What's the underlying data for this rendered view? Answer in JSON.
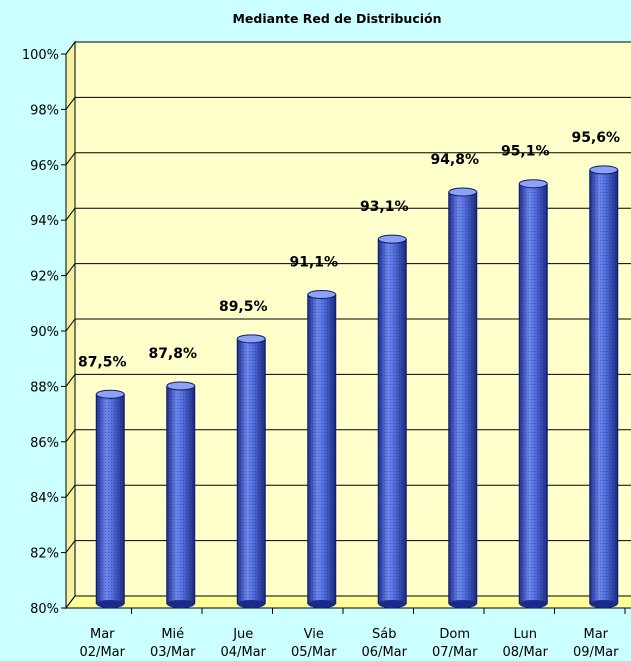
{
  "chart_data": {
    "type": "bar",
    "title": "Mediante Red de Distribución",
    "categories": [
      [
        "Mar",
        "02/Mar"
      ],
      [
        "Mié",
        "03/Mar"
      ],
      [
        "Jue",
        "04/Mar"
      ],
      [
        "Vie",
        "05/Mar"
      ],
      [
        "Sáb",
        "06/Mar"
      ],
      [
        "Dom",
        "07/Mar"
      ],
      [
        "Lun",
        "08/Mar"
      ],
      [
        "Mar",
        "09/Mar"
      ]
    ],
    "values": [
      87.5,
      87.8,
      89.5,
      91.1,
      93.1,
      94.8,
      95.1,
      95.6
    ],
    "data_labels": [
      "87,5%",
      "87,8%",
      "89,5%",
      "91,1%",
      "93,1%",
      "94,8%",
      "95,1%",
      "95,6%"
    ],
    "ylim": [
      80,
      100
    ],
    "y_ticks": [
      80,
      82,
      84,
      86,
      88,
      90,
      92,
      94,
      96,
      98,
      100
    ],
    "y_tick_labels": [
      "80%",
      "82%",
      "84%",
      "86%",
      "88%",
      "90%",
      "92%",
      "94%",
      "96%",
      "98%",
      "100%"
    ],
    "grid": true,
    "colors": {
      "background": "#ccffff",
      "plot_area": "#ffffcc",
      "floor": "#ffff99",
      "bar": "#4a66d8",
      "bar_dark": "#1a2a8c",
      "bar_light": "#8ea2f5"
    }
  }
}
